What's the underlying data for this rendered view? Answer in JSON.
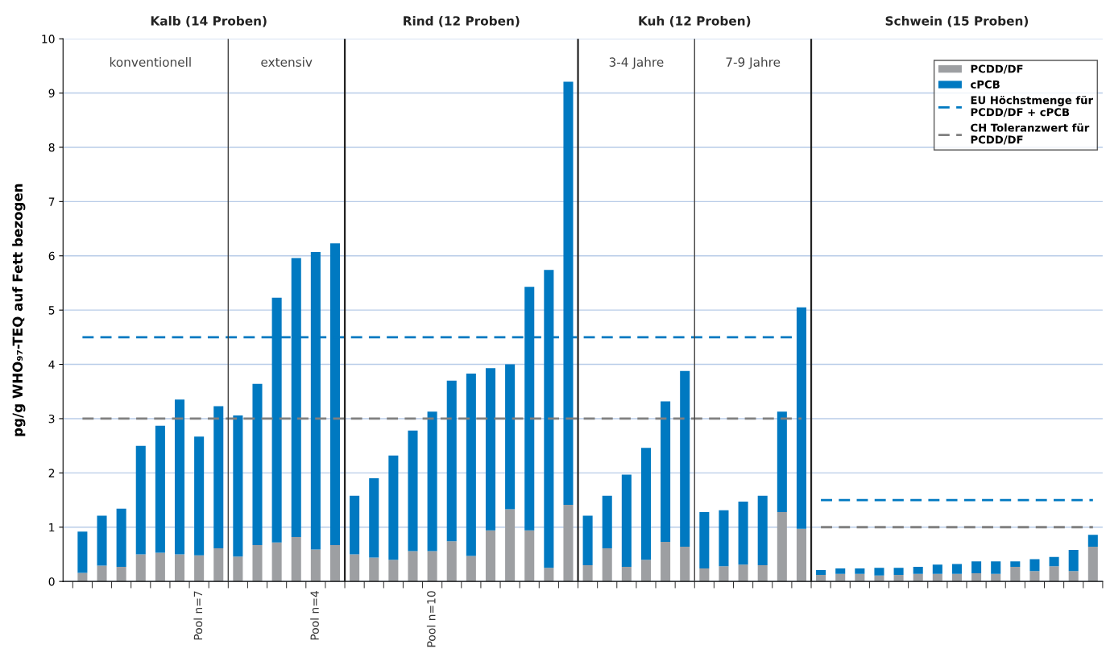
{
  "chart_data": {
    "type": "bar",
    "stacked": true,
    "ylabel": "pg/g WHO₉₇-TEQ auf Fett bezogen",
    "categories": [
      null,
      null,
      null,
      null,
      null,
      null,
      "Pool n=7",
      null,
      null,
      null,
      null,
      null,
      "Pool n=4",
      null,
      null,
      null,
      null,
      null,
      "Pool n=10",
      null,
      null,
      null,
      null,
      null,
      null,
      null,
      null,
      null,
      null,
      null,
      null,
      null,
      null,
      null,
      null,
      null,
      null,
      null,
      null,
      null,
      null,
      null,
      null,
      null,
      null,
      null,
      null,
      null,
      null,
      null,
      null,
      null,
      null
    ],
    "series": [
      {
        "name": "PCDD/DF",
        "color": "#9d9fa2",
        "values": [
          0.16,
          0.29,
          0.27,
          0.5,
          0.53,
          0.5,
          0.48,
          0.61,
          0.46,
          0.67,
          0.72,
          0.82,
          0.59,
          0.67,
          0.5,
          0.44,
          0.4,
          0.56,
          0.56,
          0.74,
          0.47,
          0.94,
          1.33,
          0.94,
          0.25,
          1.41,
          0.3,
          0.61,
          0.27,
          0.4,
          0.73,
          0.64,
          0.24,
          0.28,
          0.31,
          0.3,
          1.28,
          0.97,
          0.12,
          0.14,
          0.14,
          0.11,
          0.12,
          0.14,
          0.14,
          0.14,
          0.15,
          0.14,
          0.27,
          0.19,
          0.28,
          0.19,
          0.64
        ]
      },
      {
        "name": "cPCB",
        "color": "#0079c1",
        "values": [
          0.76,
          0.92,
          1.07,
          2.0,
          2.34,
          2.85,
          2.19,
          2.62,
          2.6,
          2.97,
          4.51,
          5.14,
          5.48,
          5.56,
          1.08,
          1.46,
          1.92,
          2.22,
          2.57,
          2.96,
          3.36,
          2.99,
          2.67,
          4.49,
          5.49,
          7.8,
          0.91,
          0.97,
          1.7,
          2.06,
          2.59,
          3.24,
          1.04,
          1.03,
          1.16,
          1.28,
          1.85,
          4.08,
          0.09,
          0.1,
          0.1,
          0.14,
          0.13,
          0.13,
          0.17,
          0.18,
          0.22,
          0.23,
          0.1,
          0.22,
          0.17,
          0.39,
          0.22
        ]
      },
      {
        "type": "line",
        "name": "EU Höchstmenge für\nPCDD/DF + cPCB",
        "color": "#0079c1",
        "line_style": "dashed",
        "values": [
          4.5,
          4.5,
          4.5,
          4.5,
          4.5,
          4.5,
          4.5,
          4.5,
          4.5,
          4.5,
          4.5,
          4.5,
          4.5,
          4.5,
          4.5,
          4.5,
          4.5,
          4.5,
          4.5,
          4.5,
          4.5,
          4.5,
          4.5,
          4.5,
          4.5,
          4.5,
          4.5,
          4.5,
          4.5,
          4.5,
          4.5,
          4.5,
          4.5,
          4.5,
          4.5,
          4.5,
          4.5,
          4.5,
          1.5,
          1.5,
          1.5,
          1.5,
          1.5,
          1.5,
          1.5,
          1.5,
          1.5,
          1.5,
          1.5,
          1.5,
          1.5,
          1.5,
          1.5
        ]
      },
      {
        "type": "line",
        "name": "CH Toleranzwert für\nPCDD/DF",
        "color": "#808080",
        "line_style": "dashed",
        "values": [
          3,
          3,
          3,
          3,
          3,
          3,
          3,
          3,
          3,
          3,
          3,
          3,
          3,
          3,
          3,
          3,
          3,
          3,
          3,
          3,
          3,
          3,
          3,
          3,
          3,
          3,
          3,
          3,
          3,
          3,
          3,
          3,
          3,
          3,
          3,
          3,
          3,
          3,
          1,
          1,
          1,
          1,
          1,
          1,
          1,
          1,
          1,
          1,
          1,
          1,
          1,
          1,
          1
        ]
      }
    ],
    "annotations": [
      "Kalb (14 Proben)",
      "Rind (12 Proben)",
      "Kuh (12 Proben)",
      "Schwein (15 Proben)",
      "konventionell",
      "extensiv",
      "3-4 Jahre",
      "7-9 Jahre"
    ],
    "ylim": [
      0,
      10
    ],
    "yticks": [
      0,
      1,
      2,
      3,
      4,
      5,
      6,
      7,
      8,
      9,
      10
    ],
    "grid": "y",
    "legend": "top right"
  }
}
